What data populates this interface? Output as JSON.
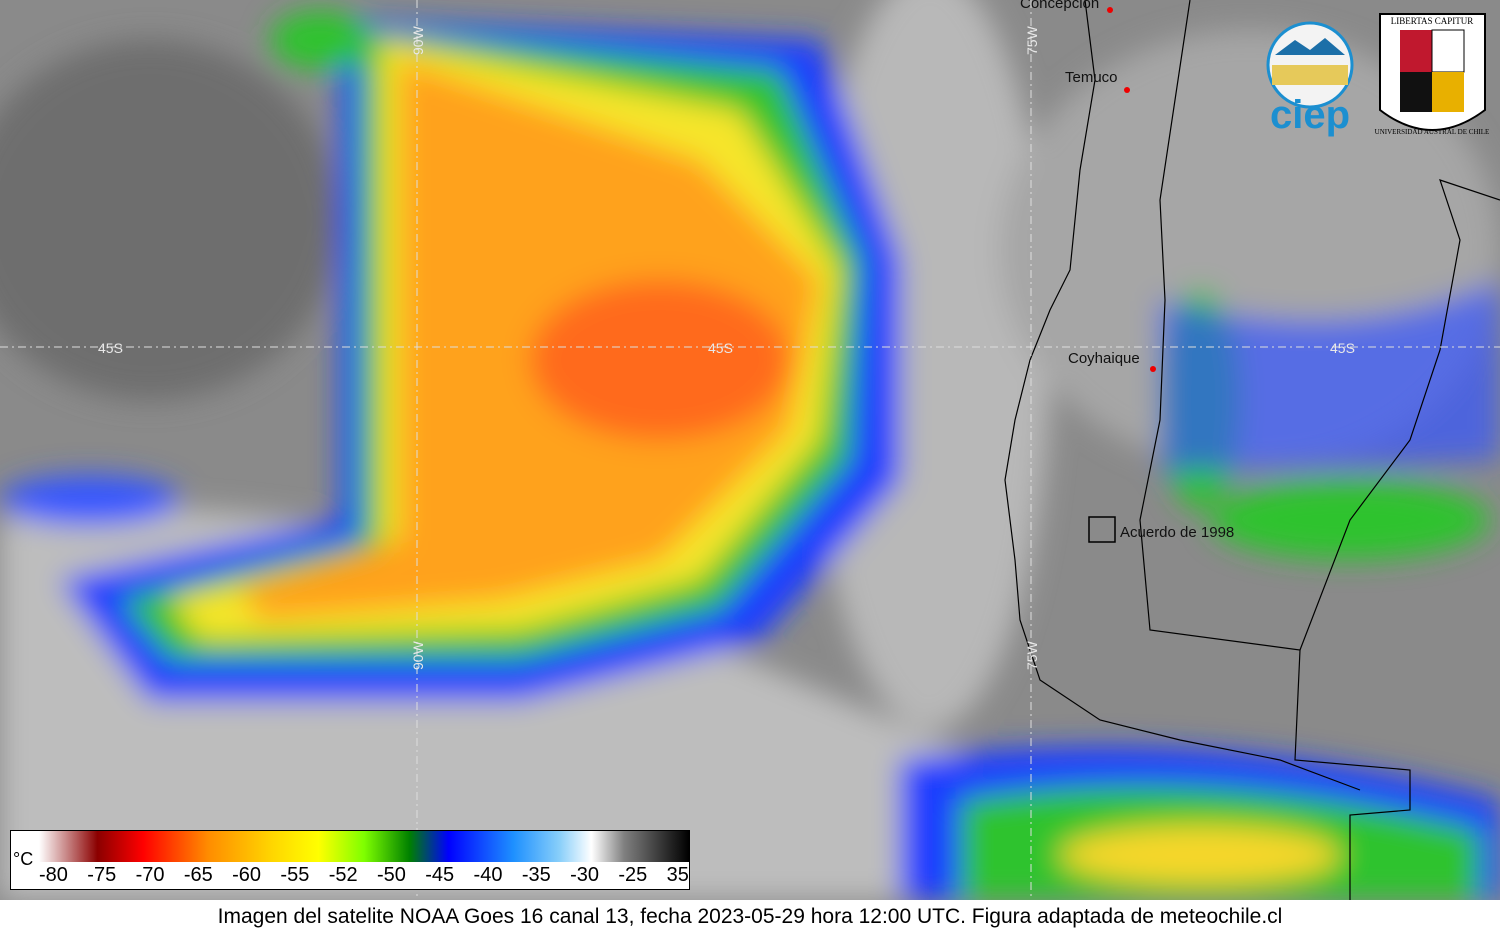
{
  "map": {
    "cities": [
      "Concepción",
      "Temuco",
      "Coyhaique"
    ],
    "annotation": "Acuerdo de 1998",
    "grid_labels": {
      "latitude": "45S",
      "longitude_east": "75W",
      "longitude_west": "90W"
    }
  },
  "logos": {
    "ciep": "ciep",
    "motto": "LIBERTAS CAPITUR",
    "university": "UNIVERSIDAD AUSTRAL DE CHILE"
  },
  "legend": {
    "unit": "°C",
    "ticks": [
      -80,
      -75,
      -70,
      -65,
      -60,
      -55,
      -52,
      -50,
      -45,
      -40,
      -35,
      -30,
      -25,
      35
    ]
  },
  "caption": "Imagen del satelite NOAA Goes 16 canal 13, fecha 2023-05-29 hora 12:00 UTC. Figura adaptada de meteochile.cl"
}
